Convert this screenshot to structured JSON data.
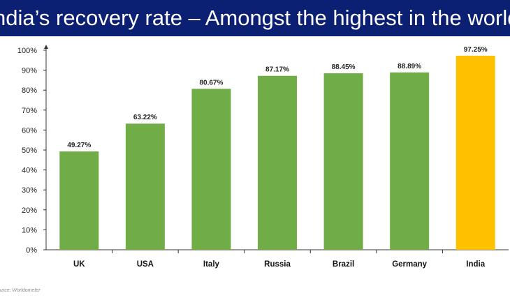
{
  "header": {
    "title": "ndia’s recovery rate – Amongst the highest in the world"
  },
  "footer": {
    "source": "urce: Worldometer"
  },
  "colors": {
    "banner": "#0b1f73",
    "bar": "#70ad47",
    "highlight": "#ffc000"
  },
  "chart_data": {
    "type": "bar",
    "title": "",
    "xlabel": "",
    "ylabel": "",
    "ylim": [
      0,
      100
    ],
    "y_ticks": [
      0,
      10,
      20,
      30,
      40,
      50,
      60,
      70,
      80,
      90,
      100
    ],
    "y_tick_suffix": "%",
    "grid": false,
    "categories": [
      "UK",
      "USA",
      "Italy",
      "Russia",
      "Brazil",
      "Germany",
      "India"
    ],
    "values": [
      49.27,
      63.22,
      80.67,
      87.17,
      88.45,
      88.89,
      97.25
    ],
    "data_labels": [
      "49.27%",
      "63.22%",
      "80.67%",
      "87.17%",
      "88.45%",
      "88.89%",
      "97.25%"
    ],
    "highlight_category": "India"
  }
}
